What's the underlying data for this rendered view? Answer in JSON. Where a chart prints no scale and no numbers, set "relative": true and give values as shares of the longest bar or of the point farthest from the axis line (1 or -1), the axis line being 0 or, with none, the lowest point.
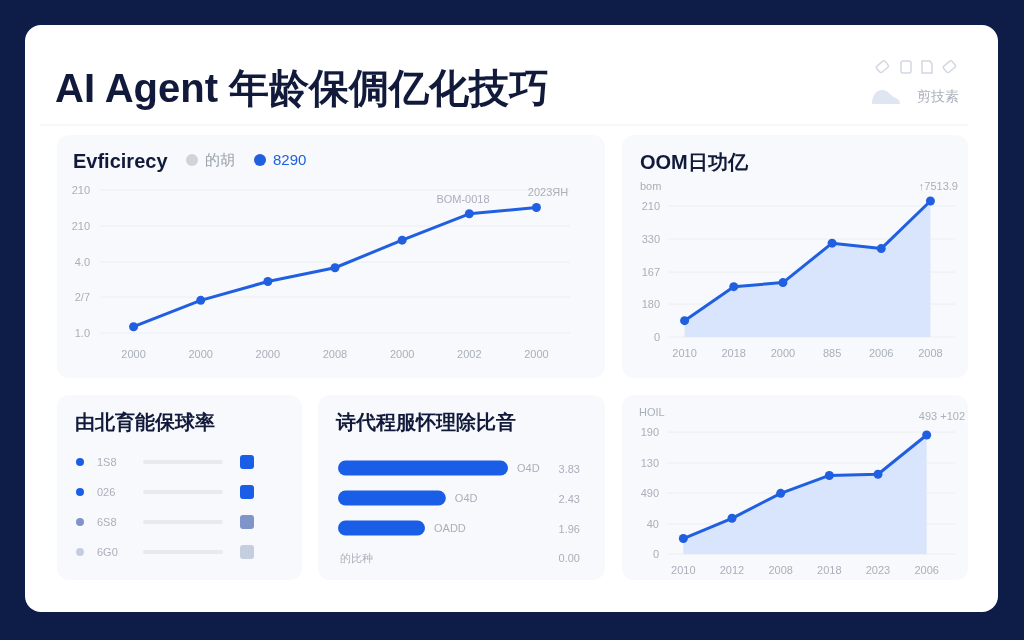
{
  "chart_data": [
    {
      "type": "line",
      "title": "AI Agent 年龄保倜亿化技巧",
      "subtitle": "Evficirecy",
      "relative": true,
      "categories": [
        "2000",
        "2000",
        "2000",
        "2008",
        "2000",
        "2002",
        "2000"
      ],
      "series": [
        {
          "name": "的胡",
          "color": "#d0d3d9",
          "values": [
            null,
            null,
            null,
            null,
            null,
            null,
            null
          ]
        },
        {
          "name": "8290",
          "color": "#1f5fe0",
          "values": [
            0.05,
            0.26,
            0.41,
            0.52,
            0.74,
            0.95,
            1
          ]
        }
      ],
      "grid": "y",
      "legend": "top left",
      "marker": "circle",
      "annotations": [
        "1.0",
        "2/7",
        "4.0",
        "210",
        "210",
        "BOM-0018",
        "2023ЯН",
        "剪技素"
      ]
    },
    {
      "type": "area",
      "title": "OOM日功亿",
      "ylabel": "bom",
      "relative": true,
      "categories": [
        "2010",
        "2018",
        "2000",
        "885",
        "2006",
        "2008"
      ],
      "series": [
        {
          "color": "#1f5fe0",
          "values": [
            0.12,
            0.37,
            0.4,
            0.69,
            0.65,
            1
          ]
        }
      ],
      "grid": "y",
      "marker": "circle",
      "annotations": [
        "0",
        "180",
        "167",
        "330",
        "210",
        "↑7513.9"
      ]
    },
    {
      "type": "other",
      "title": "由北育能保球率",
      "categories": [
        "1S8",
        "026",
        "6S8",
        "6G0"
      ],
      "colors": [
        "#1a5ee8",
        "#1a5ee8",
        "#7f95c9",
        "#c5cde0"
      ]
    },
    {
      "type": "bar",
      "orientation": "horizontal",
      "title": "诗代程服怀理除比音",
      "categories": [
        null,
        null,
        null
      ],
      "values": [
        3.83,
        2.43,
        1.96
      ],
      "color": "#1a5ee8",
      "data_labels": true,
      "annotations": [
        "O4D",
        "O4D",
        "OADD",
        "的比种",
        "0.00"
      ]
    },
    {
      "type": "area",
      "ylabel": "HOIL",
      "relative": true,
      "categories": [
        "2010",
        "2012",
        "2008",
        "2018",
        "2023",
        "2006"
      ],
      "series": [
        {
          "color": "#1f5fe0",
          "values": [
            0.13,
            0.3,
            0.51,
            0.66,
            0.67,
            1
          ]
        }
      ],
      "grid": "y",
      "marker": "circle",
      "annotations": [
        "0",
        "40",
        "490",
        "130",
        "190",
        "493 +102"
      ]
    }
  ]
}
